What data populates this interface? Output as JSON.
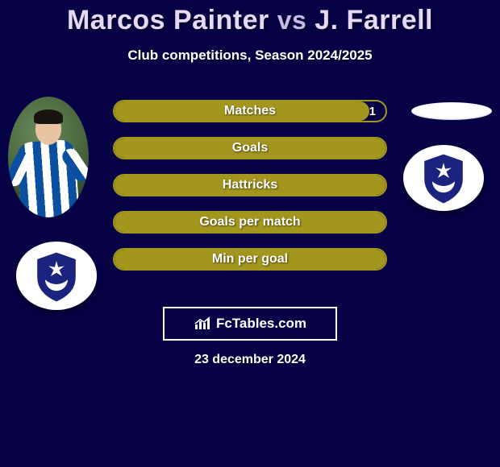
{
  "title": {
    "player1": "Marcos Painter",
    "vs": "vs",
    "player2": "J. Farrell"
  },
  "subtitle": "Club competitions, Season 2024/2025",
  "colors": {
    "background": "#060245",
    "bar_fill": "#a3961e",
    "bar_border": "#a3961e",
    "crest_navy": "#1a237e",
    "crest_white": "#ffffff"
  },
  "bars": [
    {
      "label": "Matches",
      "fill_pct": 94,
      "right_value": "1"
    },
    {
      "label": "Goals",
      "fill_pct": 100,
      "right_value": ""
    },
    {
      "label": "Hattricks",
      "fill_pct": 100,
      "right_value": ""
    },
    {
      "label": "Goals per match",
      "fill_pct": 100,
      "right_value": ""
    },
    {
      "label": "Min per goal",
      "fill_pct": 100,
      "right_value": ""
    }
  ],
  "badge": {
    "text": "FcTables.com"
  },
  "date": "23 december 2024"
}
